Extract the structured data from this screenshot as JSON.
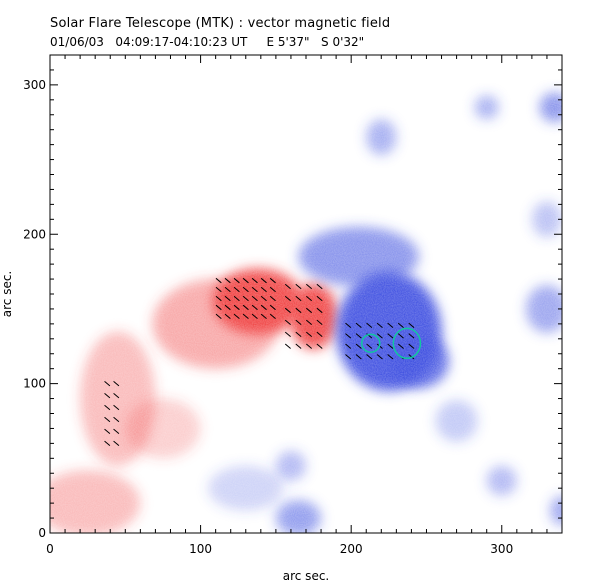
{
  "header": {
    "title": "Solar Flare Telescope (MTK) : vector magnetic field",
    "subtitle": "01/06/03   04:09:17-04:10:23 UT     E 5'37\"   S 0'32\""
  },
  "chart_data": {
    "type": "map",
    "xlabel": "arc sec.",
    "ylabel": "arc sec.",
    "xlim": [
      0,
      340
    ],
    "ylim": [
      0,
      320
    ],
    "x_ticks": [
      0,
      100,
      200,
      300
    ],
    "y_ticks": [
      0,
      100,
      200,
      300
    ],
    "colors": {
      "positive_field": "#f04040",
      "negative_field": "#3c4ee0",
      "transverse_vectors": "#000000",
      "contours": "#10c8a0"
    },
    "regions": [
      {
        "polarity": "positive",
        "x": 138,
        "y": 155,
        "rx": 30,
        "ry": 22,
        "strength": 0.95
      },
      {
        "polarity": "positive",
        "x": 175,
        "y": 145,
        "rx": 16,
        "ry": 22,
        "strength": 0.95
      },
      {
        "polarity": "positive",
        "x": 110,
        "y": 140,
        "rx": 42,
        "ry": 30,
        "strength": 0.45
      },
      {
        "polarity": "positive",
        "x": 45,
        "y": 90,
        "rx": 25,
        "ry": 45,
        "strength": 0.35
      },
      {
        "polarity": "positive",
        "x": 25,
        "y": 20,
        "rx": 35,
        "ry": 22,
        "strength": 0.35
      },
      {
        "polarity": "positive",
        "x": 75,
        "y": 70,
        "rx": 25,
        "ry": 20,
        "strength": 0.25
      },
      {
        "polarity": "negative",
        "x": 225,
        "y": 135,
        "rx": 35,
        "ry": 40,
        "strength": 0.95
      },
      {
        "polarity": "negative",
        "x": 205,
        "y": 185,
        "rx": 40,
        "ry": 20,
        "strength": 0.6
      },
      {
        "polarity": "negative",
        "x": 245,
        "y": 115,
        "rx": 20,
        "ry": 18,
        "strength": 0.8
      },
      {
        "polarity": "negative",
        "x": 165,
        "y": 10,
        "rx": 15,
        "ry": 12,
        "strength": 0.55
      },
      {
        "polarity": "negative",
        "x": 330,
        "y": 150,
        "rx": 14,
        "ry": 16,
        "strength": 0.5
      },
      {
        "polarity": "negative",
        "x": 335,
        "y": 285,
        "rx": 10,
        "ry": 10,
        "strength": 0.6
      },
      {
        "polarity": "negative",
        "x": 290,
        "y": 285,
        "rx": 8,
        "ry": 8,
        "strength": 0.45
      },
      {
        "polarity": "negative",
        "x": 220,
        "y": 265,
        "rx": 10,
        "ry": 12,
        "strength": 0.45
      },
      {
        "polarity": "negative",
        "x": 300,
        "y": 35,
        "rx": 10,
        "ry": 10,
        "strength": 0.4
      },
      {
        "polarity": "negative",
        "x": 330,
        "y": 210,
        "rx": 10,
        "ry": 12,
        "strength": 0.35
      },
      {
        "polarity": "negative",
        "x": 160,
        "y": 45,
        "rx": 10,
        "ry": 10,
        "strength": 0.4
      },
      {
        "polarity": "negative",
        "x": 130,
        "y": 30,
        "rx": 25,
        "ry": 15,
        "strength": 0.25
      },
      {
        "polarity": "negative",
        "x": 270,
        "y": 75,
        "rx": 14,
        "ry": 14,
        "strength": 0.3
      },
      {
        "polarity": "negative",
        "x": 340,
        "y": 15,
        "rx": 8,
        "ry": 10,
        "strength": 0.5
      }
    ],
    "contours": [
      {
        "x": 213,
        "y": 127,
        "rx": 6,
        "ry": 6
      },
      {
        "x": 237,
        "y": 127,
        "rx": 9,
        "ry": 10
      }
    ],
    "vectors": {
      "angle_deg": -40,
      "length": 7,
      "clusters": [
        {
          "x0": 112,
          "x1": 150,
          "y0": 145,
          "y1": 170,
          "dx": 6,
          "dy": 6
        },
        {
          "x0": 158,
          "x1": 185,
          "y0": 125,
          "y1": 170,
          "dx": 7,
          "dy": 8
        },
        {
          "x0": 198,
          "x1": 245,
          "y0": 118,
          "y1": 142,
          "dx": 7,
          "dy": 7
        },
        {
          "x0": 38,
          "x1": 48,
          "y0": 60,
          "y1": 105,
          "dx": 6,
          "dy": 8
        }
      ]
    }
  }
}
